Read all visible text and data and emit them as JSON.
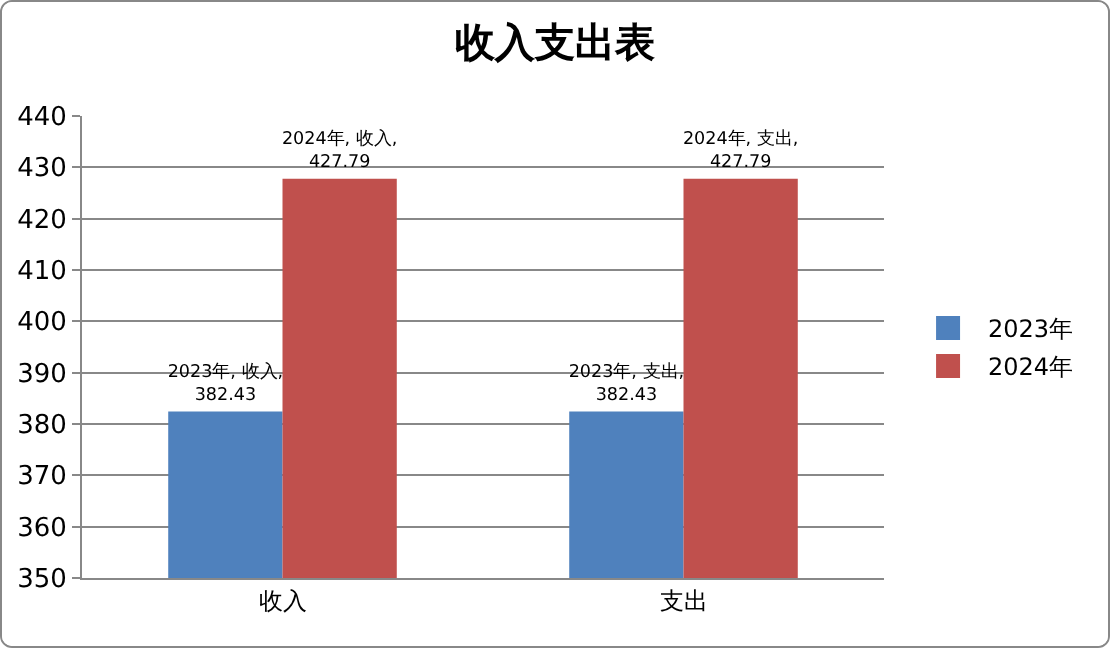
{
  "chart_data": {
    "type": "bar",
    "title": "收入支出表",
    "categories": [
      "收入",
      "支出"
    ],
    "series": [
      {
        "name": "2023年",
        "color": "#4f81bd",
        "values": [
          382.43,
          382.43
        ],
        "value_labels": [
          "2023年, 收入, 382.43",
          "2023年, 支出, 382.43"
        ]
      },
      {
        "name": "2024年",
        "color": "#c0504d",
        "values": [
          427.79,
          427.79
        ],
        "value_labels": [
          "2024年, 收入, 427.79",
          "2024年, 支出, 427.79"
        ]
      }
    ],
    "ylim": [
      350,
      440
    ],
    "yticks": [
      350,
      360,
      370,
      380,
      390,
      400,
      410,
      420,
      430,
      440
    ],
    "grid": "y",
    "legend": "right"
  }
}
